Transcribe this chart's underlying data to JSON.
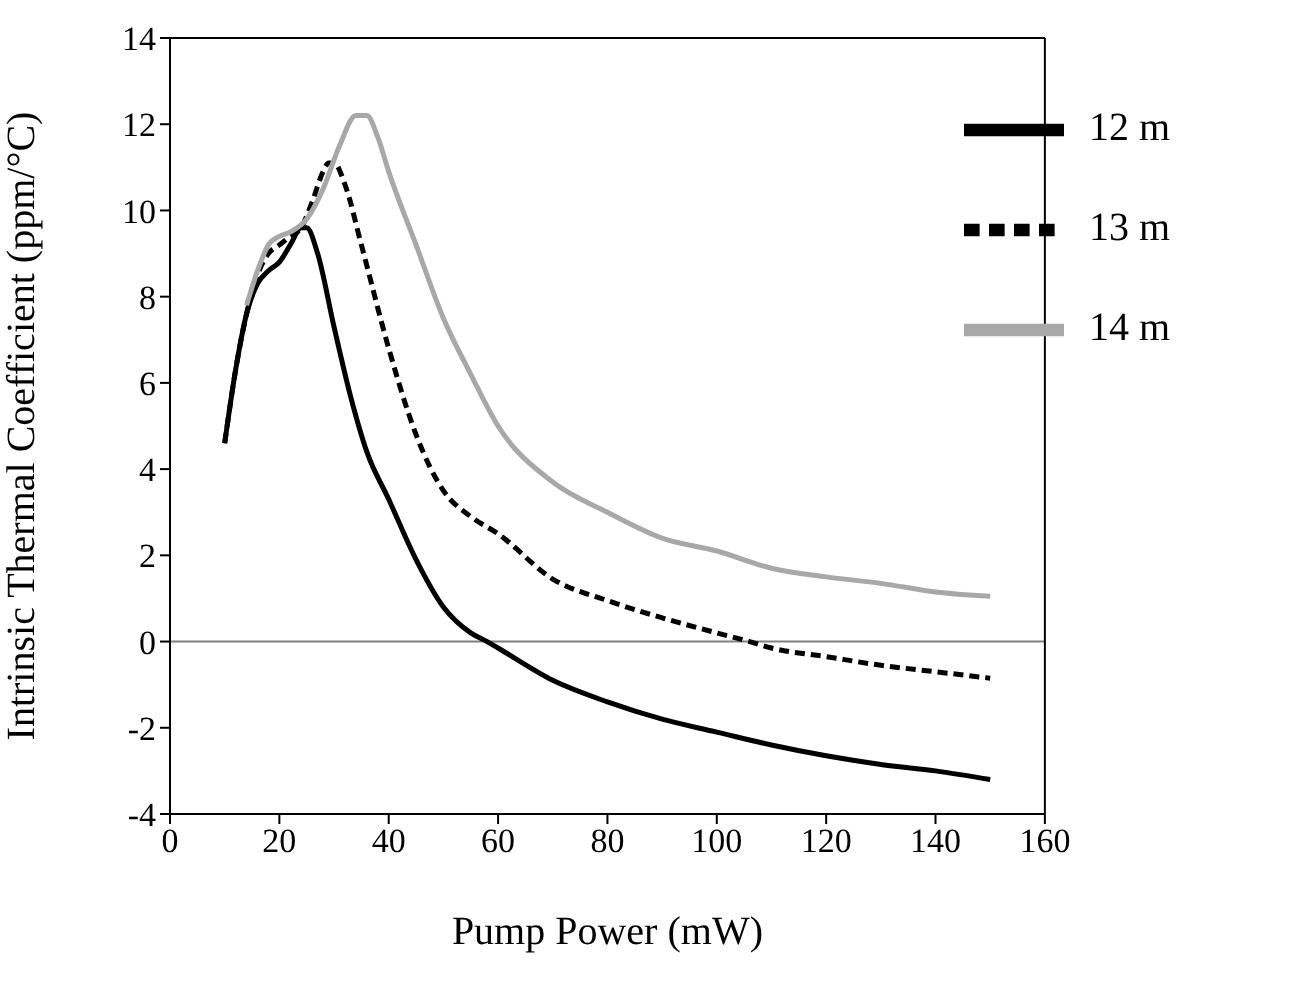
{
  "chart_data": {
    "type": "line",
    "xlabel": "Pump Power (mW)",
    "ylabel": "Intrinsic Thermal Coefficient (ppm/°C)",
    "xlim": [
      0,
      160
    ],
    "xticks": [
      0,
      20,
      40,
      60,
      80,
      100,
      120,
      140,
      160
    ],
    "ylim": [
      -4,
      14
    ],
    "yticks": [
      -4,
      -2,
      0,
      2,
      4,
      6,
      8,
      10,
      12,
      14
    ],
    "grid": false,
    "legend": "top right",
    "marker": "none",
    "ref_lines": [
      {
        "axis": "y",
        "value": 0,
        "color": "#808080"
      }
    ],
    "series": [
      {
        "name": "12 m",
        "color": "#000000",
        "line_style": "solid",
        "x": [
          10,
          12,
          14,
          16,
          18,
          20,
          22,
          24,
          25,
          27,
          30,
          33,
          36,
          40,
          45,
          50,
          55,
          58,
          60,
          70,
          80,
          90,
          100,
          110,
          120,
          130,
          140,
          150
        ],
        "values": [
          4.6,
          6.3,
          7.6,
          8.3,
          8.6,
          8.8,
          9.2,
          9.6,
          9.6,
          9.0,
          7.3,
          5.7,
          4.4,
          3.3,
          1.9,
          0.8,
          0.2,
          0,
          -0.15,
          -0.9,
          -1.4,
          -1.8,
          -2.1,
          -2.4,
          -2.65,
          -2.85,
          -3.0,
          -3.2
        ]
      },
      {
        "name": "13 m",
        "color": "#000000",
        "line_style": "dashed",
        "x": [
          10,
          12,
          14,
          16,
          18,
          20,
          22,
          24,
          26,
          28,
          29,
          30,
          32,
          35,
          40,
          45,
          50,
          55,
          60,
          70,
          80,
          90,
          100,
          106,
          110,
          120,
          130,
          140,
          150
        ],
        "values": [
          4.6,
          6.3,
          7.6,
          8.5,
          9.0,
          9.2,
          9.4,
          9.6,
          10.2,
          10.9,
          11.1,
          11.1,
          10.6,
          9.2,
          6.8,
          4.8,
          3.5,
          2.9,
          2.5,
          1.45,
          0.95,
          0.55,
          0.2,
          0,
          -0.15,
          -0.35,
          -0.55,
          -0.7,
          -0.85
        ]
      },
      {
        "name": "14 m",
        "color": "#a8a8a8",
        "line_style": "solid",
        "x": [
          14,
          16,
          18,
          20,
          22,
          25,
          28,
          31,
          34,
          36,
          38,
          40,
          45,
          50,
          55,
          60,
          70,
          80,
          90,
          100,
          110,
          120,
          130,
          140,
          150
        ],
        "values": [
          7.8,
          8.6,
          9.2,
          9.4,
          9.5,
          9.8,
          10.5,
          11.5,
          12.2,
          12.2,
          11.7,
          10.9,
          9.2,
          7.5,
          6.2,
          5.0,
          3.7,
          3.0,
          2.4,
          2.1,
          1.7,
          1.5,
          1.35,
          1.15,
          1.05
        ]
      }
    ]
  }
}
